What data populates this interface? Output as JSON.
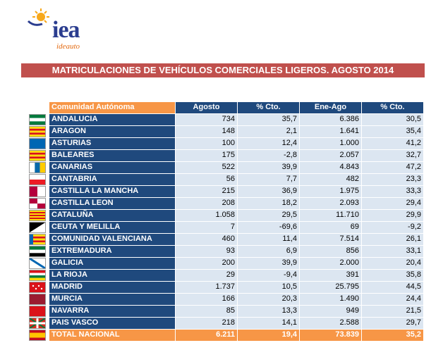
{
  "logo": {
    "word": "iea",
    "subtitle": "ideauto"
  },
  "banner": {
    "title": "MATRICULACIONES DE VEHÍCULOS COMERCIALES LIGEROS. AGOSTO 2014"
  },
  "table": {
    "headers": [
      "Comunidad Autónoma",
      "Agosto",
      "% Cto.",
      "Ene-Ago",
      "% Cto."
    ],
    "rows": [
      [
        "ANDALUCIA",
        "734",
        "35,7",
        "6.386",
        "30,5"
      ],
      [
        "ARAGON",
        "148",
        "2,1",
        "1.641",
        "35,4"
      ],
      [
        "ASTURIAS",
        "100",
        "12,4",
        "1.000",
        "41,2"
      ],
      [
        "BALEARES",
        "175",
        "-2,8",
        "2.057",
        "32,7"
      ],
      [
        "CANARIAS",
        "522",
        "39,9",
        "4.843",
        "47,2"
      ],
      [
        "CANTABRIA",
        "56",
        "7,7",
        "482",
        "23,3"
      ],
      [
        "CASTILLA LA MANCHA",
        "215",
        "36,9",
        "1.975",
        "33,3"
      ],
      [
        "CASTILLA LEON",
        "208",
        "18,2",
        "2.093",
        "29,4"
      ],
      [
        "CATALUÑA",
        "1.058",
        "29,5",
        "11.710",
        "29,9"
      ],
      [
        "CEUTA Y MELILLA",
        "7",
        "-69,6",
        "69",
        "-9,2"
      ],
      [
        "COMUNIDAD VALENCIANA",
        "460",
        "11,4",
        "7.514",
        "26,1"
      ],
      [
        "EXTREMADURA",
        "93",
        "6,9",
        "856",
        "33,1"
      ],
      [
        "GALICIA",
        "200",
        "39,9",
        "2.000",
        "20,4"
      ],
      [
        "LA RIOJA",
        "29",
        "-9,4",
        "391",
        "35,8"
      ],
      [
        "MADRID",
        "1.737",
        "10,5",
        "25.795",
        "44,5"
      ],
      [
        "MURCIA",
        "166",
        "20,3",
        "1.490",
        "24,4"
      ],
      [
        "NAVARRA",
        "85",
        "13,3",
        "949",
        "21,5"
      ],
      [
        "PAIS VASCO",
        "218",
        "14,1",
        "2.588",
        "29,7"
      ]
    ],
    "total": [
      "TOTAL NACIONAL",
      "6.211",
      "19,4",
      "73.839",
      "35,2"
    ],
    "flags": [
      {
        "name": "andalucia-flag-icon",
        "stripes": [
          "#007a3d",
          "#ffffff",
          "#007a3d"
        ]
      },
      {
        "name": "aragon-flag-icon",
        "stripes": [
          "#fcdd09",
          "#da121a",
          "#fcdd09",
          "#da121a",
          "#fcdd09"
        ]
      },
      {
        "name": "asturias-flag-icon",
        "stripes": [
          "#0066b3"
        ]
      },
      {
        "name": "baleares-flag-icon",
        "stripes": [
          "#fcdd09",
          "#da121a",
          "#fcdd09",
          "#da121a",
          "#fcdd09"
        ]
      },
      {
        "name": "canarias-flag-icon",
        "stripes": [
          "#ffffff",
          "#0768a9",
          "#ffcc00"
        ],
        "vertical": true
      },
      {
        "name": "cantabria-flag-icon",
        "stripes": [
          "#ffffff",
          "#ed1c24"
        ]
      },
      {
        "name": "castilla-la-mancha-flag-icon",
        "stripes": [
          "#b4003c",
          "#ffffff"
        ],
        "vertical": true
      },
      {
        "name": "castilla-leon-flag-icon",
        "stripes": [
          "#b4003c",
          "#ffffff",
          "#ffffff",
          "#b4003c"
        ],
        "quarters": true
      },
      {
        "name": "cataluna-flag-icon",
        "stripes": [
          "#fcdd09",
          "#da121a",
          "#fcdd09",
          "#da121a",
          "#fcdd09",
          "#da121a",
          "#fcdd09"
        ]
      },
      {
        "name": "ceuta-melilla-flag-icon",
        "stripes": [
          "#000000",
          "#ffffff"
        ],
        "diagonal": true
      },
      {
        "name": "comunidad-valenciana-flag-icon",
        "stripes": [
          "#fcdd09",
          "#da121a",
          "#fcdd09",
          "#da121a",
          "#fcdd09"
        ],
        "hoist": "#0066b3"
      },
      {
        "name": "extremadura-flag-icon",
        "stripes": [
          "#007a3d",
          "#ffffff",
          "#000000"
        ]
      },
      {
        "name": "galicia-flag-icon",
        "stripes": [
          "#ffffff"
        ],
        "diagonal_blue": true
      },
      {
        "name": "la-rioja-flag-icon",
        "stripes": [
          "#da121a",
          "#ffffff",
          "#007a3d",
          "#fcdd09"
        ]
      },
      {
        "name": "madrid-flag-icon",
        "stripes": [
          "#da121a"
        ],
        "stars": true
      },
      {
        "name": "murcia-flag-icon",
        "stripes": [
          "#9b1b30"
        ]
      },
      {
        "name": "navarra-flag-icon",
        "stripes": [
          "#da121a"
        ]
      },
      {
        "name": "pais-vasco-flag-icon",
        "stripes": [
          "#d52b1e"
        ],
        "cross": true
      },
      {
        "name": "espana-flag-icon",
        "stripes": [
          "#c60b1e",
          "#ffc400",
          "#ffc400",
          "#c60b1e"
        ]
      }
    ]
  }
}
